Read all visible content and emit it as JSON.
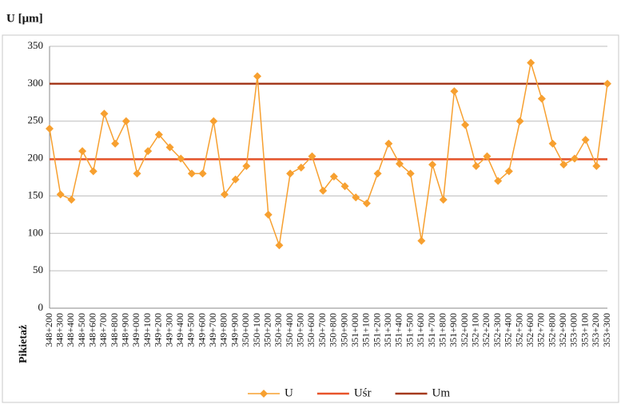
{
  "chart_data": {
    "type": "line",
    "y_label": "U [μm]",
    "x_label": "Pikietaż",
    "categories": [
      "348+200",
      "348+300",
      "348+400",
      "348+500",
      "348+600",
      "348+700",
      "348+800",
      "348+900",
      "349+000",
      "349+100",
      "349+200",
      "349+300",
      "349+400",
      "349+500",
      "349+600",
      "349+700",
      "349+800",
      "349+900",
      "350+000",
      "350+100",
      "350+200",
      "350+300",
      "350+400",
      "350+500",
      "350+600",
      "350+700",
      "350+800",
      "350+900",
      "351+000",
      "351+100",
      "351+200",
      "351+300",
      "351+400",
      "351+500",
      "351+600",
      "351+700",
      "351+800",
      "351+900",
      "352+000",
      "352+100",
      "352+200",
      "352+300",
      "352+400",
      "352+500",
      "352+600",
      "352+700",
      "352+800",
      "352+900",
      "353+000",
      "353+100",
      "353+200",
      "353+300"
    ],
    "series": [
      {
        "name": "U",
        "color": "#f7a030",
        "marker": "diamond",
        "values": [
          240,
          152,
          145,
          210,
          183,
          260,
          220,
          250,
          180,
          210,
          232,
          215,
          200,
          180,
          180,
          250,
          152,
          172,
          190,
          310,
          125,
          84,
          180,
          188,
          203,
          157,
          176,
          163,
          148,
          140,
          180,
          220,
          193,
          180,
          90,
          192,
          145,
          290,
          245,
          190,
          203,
          170,
          183,
          250,
          328,
          280,
          220,
          192,
          200,
          225,
          190,
          300
        ]
      },
      {
        "name": "Uśr",
        "color": "#e8542a",
        "values": [
          199,
          199,
          199,
          199,
          199,
          199,
          199,
          199,
          199,
          199,
          199,
          199,
          199,
          199,
          199,
          199,
          199,
          199,
          199,
          199,
          199,
          199,
          199,
          199,
          199,
          199,
          199,
          199,
          199,
          199,
          199,
          199,
          199,
          199,
          199,
          199,
          199,
          199,
          199,
          199,
          199,
          199,
          199,
          199,
          199,
          199,
          199,
          199,
          199,
          199,
          199,
          199
        ]
      },
      {
        "name": "Um",
        "color": "#a53a1e",
        "values": [
          300,
          300,
          300,
          300,
          300,
          300,
          300,
          300,
          300,
          300,
          300,
          300,
          300,
          300,
          300,
          300,
          300,
          300,
          300,
          300,
          300,
          300,
          300,
          300,
          300,
          300,
          300,
          300,
          300,
          300,
          300,
          300,
          300,
          300,
          300,
          300,
          300,
          300,
          300,
          300,
          300,
          300,
          300,
          300,
          300,
          300,
          300,
          300,
          300,
          300,
          300,
          300
        ]
      }
    ],
    "ylim": [
      0,
      350
    ],
    "yticks": [
      0,
      50,
      100,
      150,
      200,
      250,
      300,
      350
    ],
    "grid": true,
    "legend": "bottom"
  }
}
